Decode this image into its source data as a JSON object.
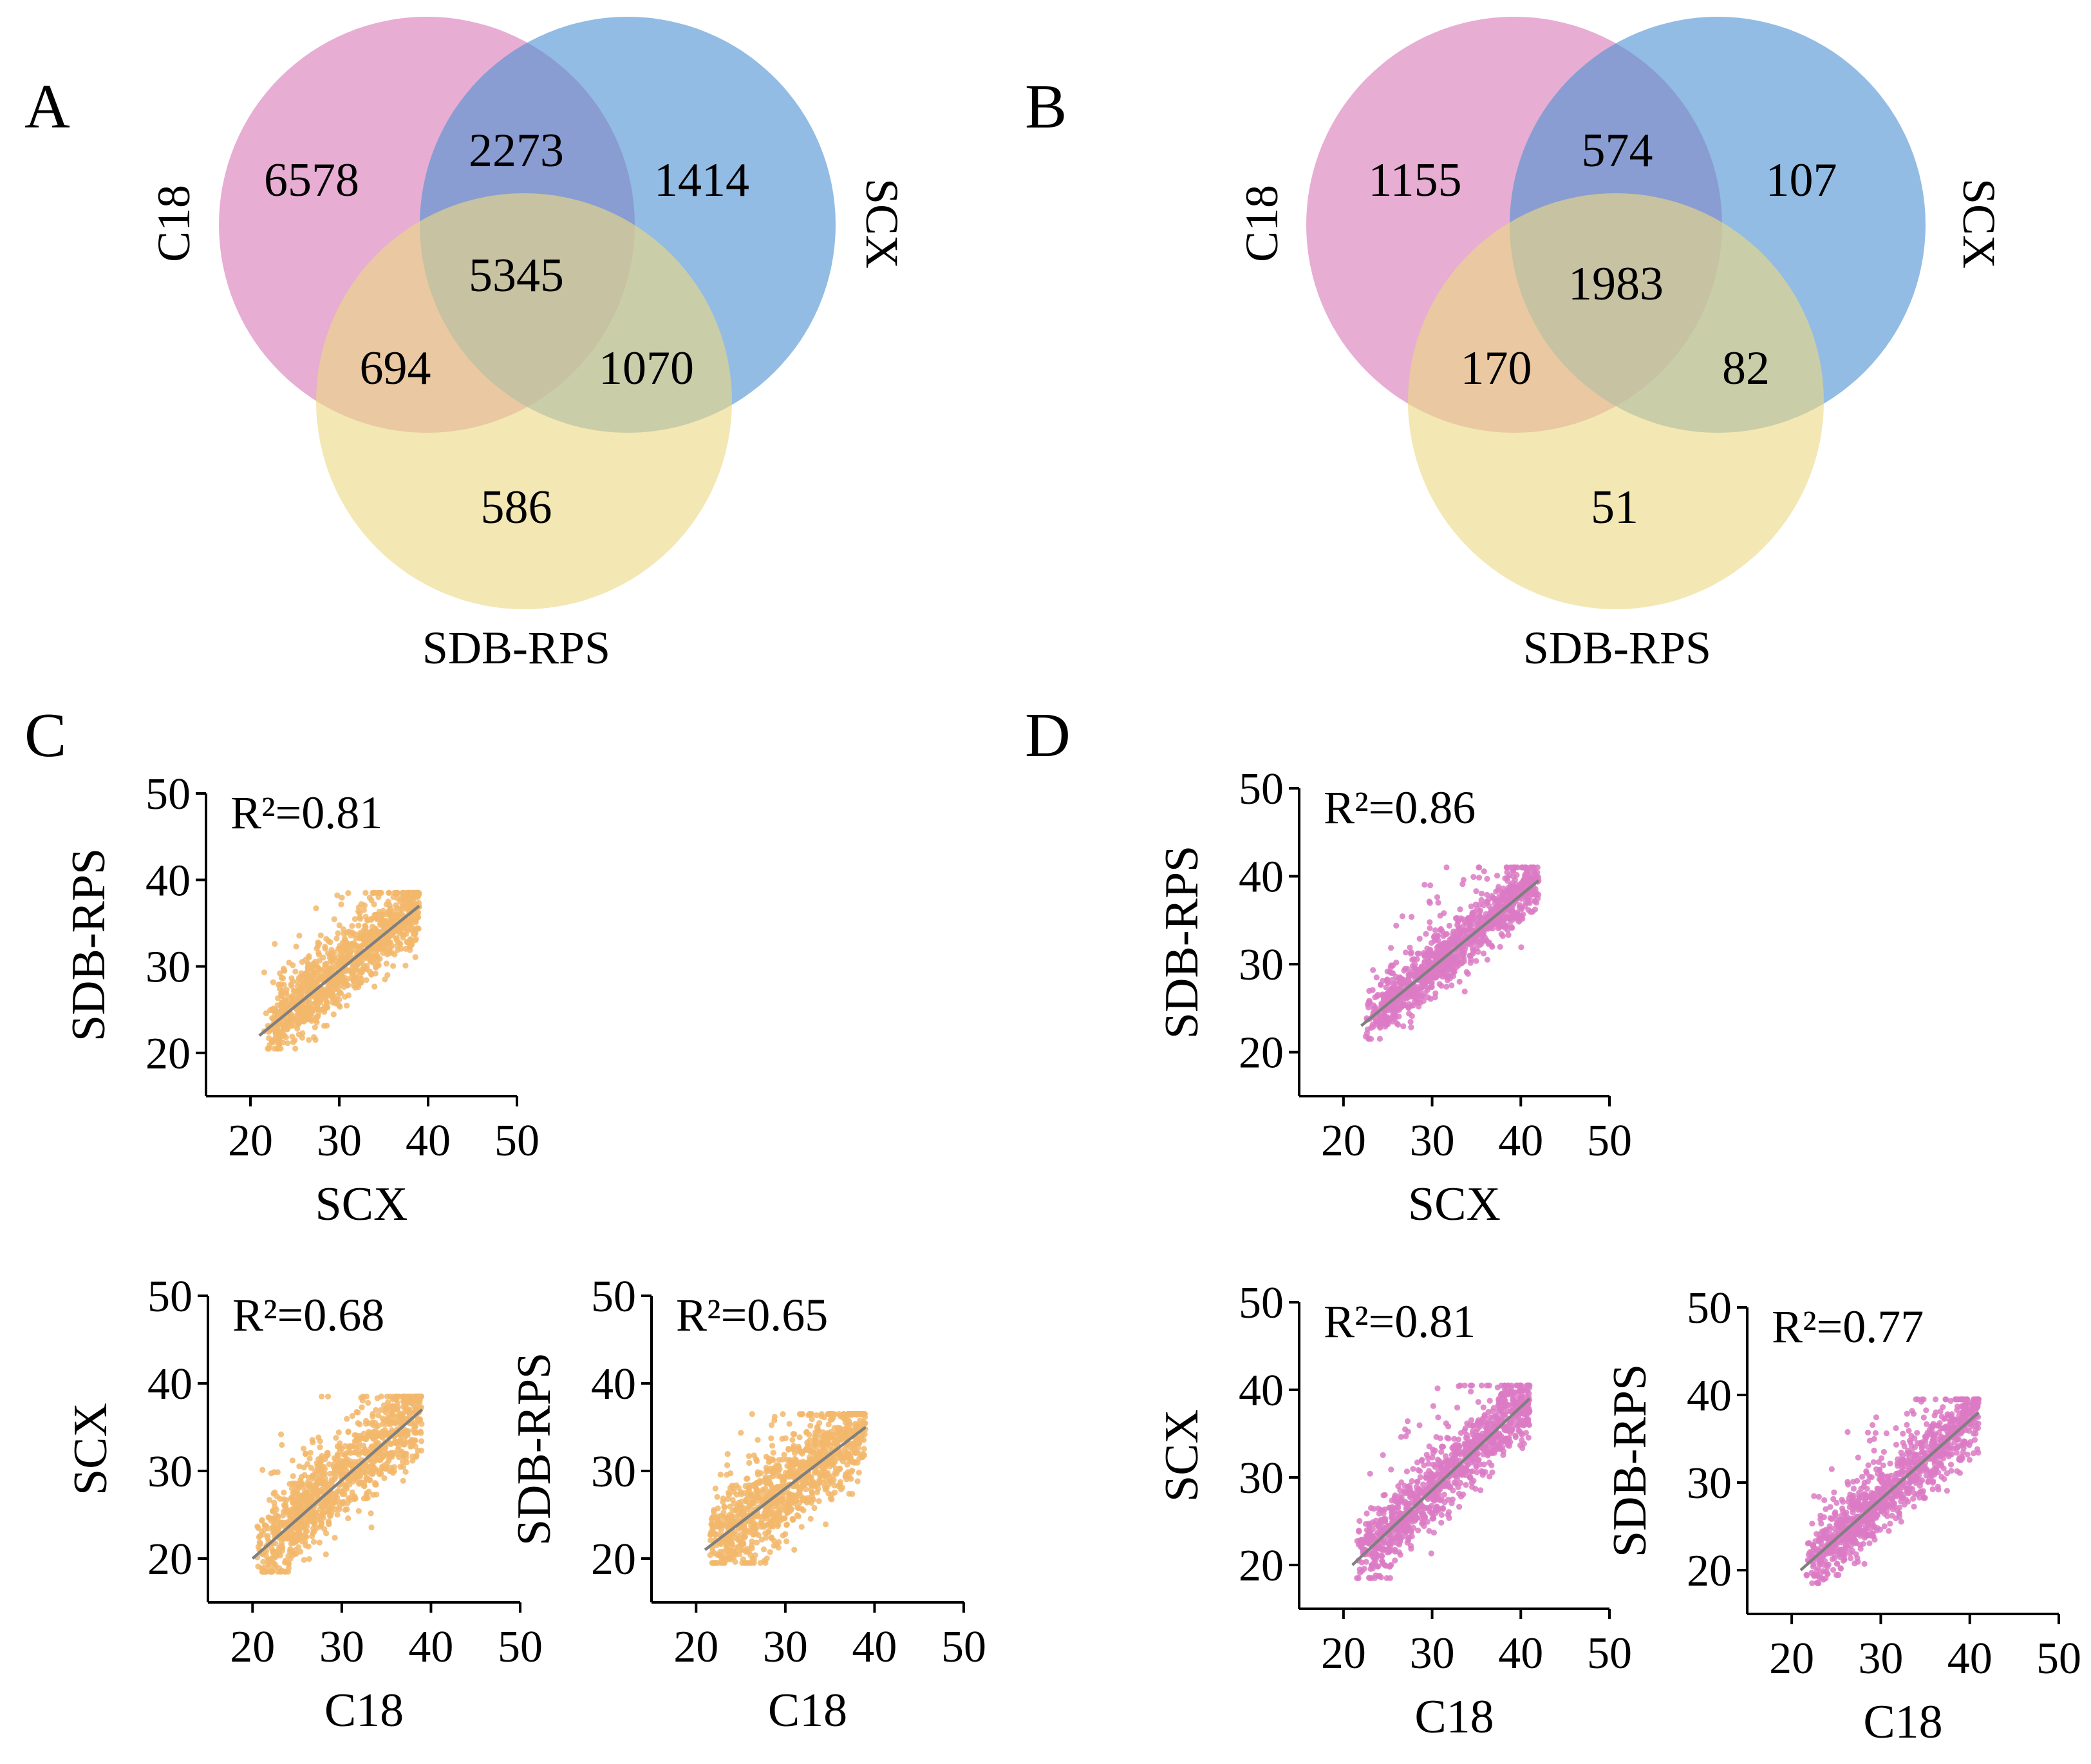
{
  "panels": {
    "A": "A",
    "B": "B",
    "C": "C",
    "D": "D"
  },
  "colors": {
    "c18": "#d97ab8",
    "scx": "#4f93d2",
    "sdb": "#ebd985",
    "orange_points": "#f2b76b",
    "pink_points": "#dc7ac4",
    "fit_line": "#7f7f7f"
  },
  "venns": {
    "A": {
      "labels": {
        "c18": "C18",
        "scx": "SCX",
        "sdb": "SDB-RPS"
      },
      "counts": {
        "c18_only": "6578",
        "c18_scx": "2273",
        "scx_only": "1414",
        "all": "5345",
        "c18_sdb": "694",
        "scx_sdb": "1070",
        "sdb_only": "586"
      }
    },
    "B": {
      "labels": {
        "c18": "C18",
        "scx": "SCX",
        "sdb": "SDB-RPS"
      },
      "counts": {
        "c18_only": "1155",
        "c18_scx": "574",
        "scx_only": "107",
        "all": "1983",
        "c18_sdb": "170",
        "scx_sdb": "82",
        "sdb_only": "51"
      }
    }
  },
  "chart_data": [
    {
      "type": "scatter",
      "panel": "C",
      "r2": "R²=0.81",
      "xlabel": "SCX",
      "ylabel": "SDB-RPS",
      "xlim": [
        15,
        50
      ],
      "ylim": [
        15,
        50
      ],
      "xticks": [
        "20",
        "30",
        "40",
        "50"
      ],
      "yticks": [
        "20",
        "30",
        "40",
        "50"
      ],
      "fit": [
        [
          21,
          22
        ],
        [
          39,
          37
        ]
      ],
      "spread": 2.0,
      "color": "orange"
    },
    {
      "type": "scatter",
      "panel": "C",
      "r2": "R²=0.68",
      "xlabel": "C18",
      "ylabel": "SCX",
      "xlim": [
        15,
        50
      ],
      "ylim": [
        15,
        50
      ],
      "xticks": [
        "20",
        "30",
        "40",
        "50"
      ],
      "yticks": [
        "20",
        "30",
        "40",
        "50"
      ],
      "fit": [
        [
          20,
          20
        ],
        [
          39,
          37
        ]
      ],
      "spread": 2.5,
      "color": "orange"
    },
    {
      "type": "scatter",
      "panel": "C",
      "r2": "R²=0.65",
      "xlabel": "C18",
      "ylabel": "SDB-RPS",
      "xlim": [
        15,
        50
      ],
      "ylim": [
        15,
        50
      ],
      "xticks": [
        "20",
        "30",
        "40",
        "50"
      ],
      "yticks": [
        "20",
        "30",
        "40",
        "50"
      ],
      "fit": [
        [
          21,
          21
        ],
        [
          39,
          35
        ]
      ],
      "spread": 2.5,
      "color": "orange"
    },
    {
      "type": "scatter",
      "panel": "D",
      "r2": "R²=0.86",
      "xlabel": "SCX",
      "ylabel": "SDB-RPS",
      "xlim": [
        15,
        50
      ],
      "ylim": [
        15,
        50
      ],
      "xticks": [
        "20",
        "30",
        "40",
        "50"
      ],
      "yticks": [
        "20",
        "30",
        "40",
        "50"
      ],
      "fit": [
        [
          22,
          23
        ],
        [
          42,
          39.5
        ]
      ],
      "spread": 1.6,
      "color": "pink"
    },
    {
      "type": "scatter",
      "panel": "D",
      "r2": "R²=0.81",
      "xlabel": "C18",
      "ylabel": "SCX",
      "xlim": [
        15,
        50
      ],
      "ylim": [
        15,
        50
      ],
      "xticks": [
        "20",
        "30",
        "40",
        "50"
      ],
      "yticks": [
        "20",
        "30",
        "40",
        "50"
      ],
      "fit": [
        [
          21,
          20
        ],
        [
          41,
          39
        ]
      ],
      "spread": 1.9,
      "color": "pink"
    },
    {
      "type": "scatter",
      "panel": "D",
      "r2": "R²=0.77",
      "xlabel": "C18",
      "ylabel": "SDB-RPS",
      "xlim": [
        15,
        50
      ],
      "ylim": [
        15,
        50
      ],
      "xticks": [
        "20",
        "30",
        "40",
        "50"
      ],
      "yticks": [
        "20",
        "30",
        "40",
        "50"
      ],
      "fit": [
        [
          21,
          20
        ],
        [
          41,
          38
        ]
      ],
      "spread": 2.0,
      "color": "pink"
    }
  ]
}
